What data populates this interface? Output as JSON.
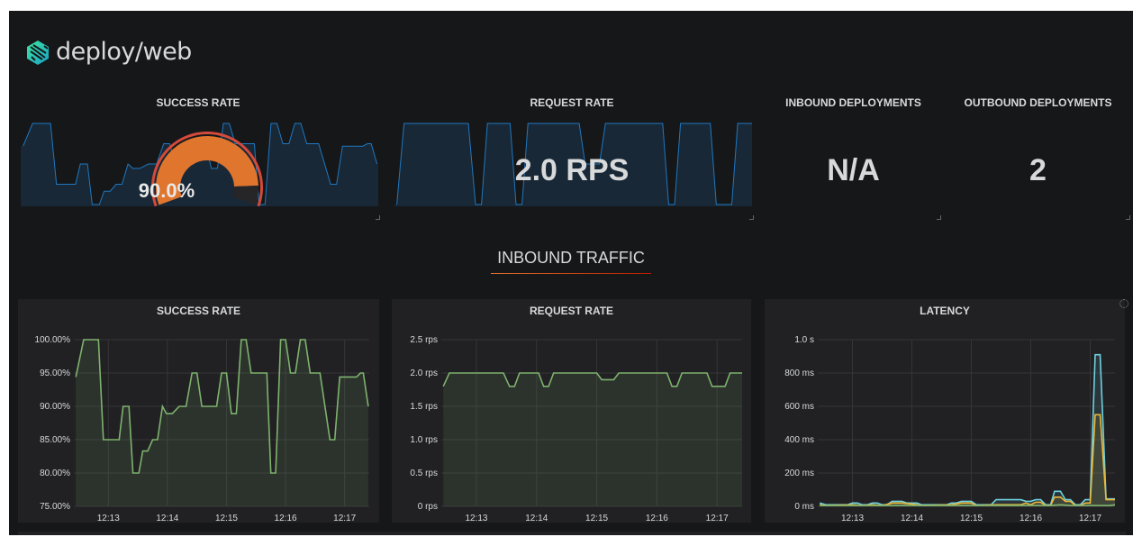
{
  "header": {
    "title": "deploy/web",
    "logo_icon": "linkerd-logo-icon"
  },
  "stats": {
    "success_rate": {
      "title": "SUCCESS RATE",
      "value": "90.0%",
      "gauge_fraction": 0.9,
      "colors": {
        "gauge": "#e0752d",
        "threshold": "#d44a3a",
        "sparkline": "#1f78c1"
      }
    },
    "request_rate": {
      "title": "REQUEST RATE",
      "value": "2.0 RPS"
    },
    "inbound_deployments": {
      "title": "INBOUND DEPLOYMENTS",
      "value": "N/A"
    },
    "outbound_deployments": {
      "title": "OUTBOUND DEPLOYMENTS",
      "value": "2"
    }
  },
  "row": {
    "title": "INBOUND TRAFFIC"
  },
  "chart_data": [
    {
      "type": "area",
      "title": "SUCCESS RATE",
      "x_ticks": [
        "12:13",
        "12:14",
        "12:15",
        "12:16",
        "12:17"
      ],
      "y_ticks": [
        "75.00%",
        "80.00%",
        "85.00%",
        "90.00%",
        "95.00%",
        "100.00%"
      ],
      "ylim": [
        75,
        100
      ],
      "xlim": [
        "12:12:25",
        "12:17:25"
      ],
      "grid": true,
      "series": [
        {
          "color": "#7eb26d",
          "points": [
            [
              "12:12:27",
              94.4
            ],
            [
              "12:12:35",
              100
            ],
            [
              "12:12:50",
              100
            ],
            [
              "12:12:55",
              85
            ],
            [
              "12:13:11",
              85
            ],
            [
              "12:13:15",
              90
            ],
            [
              "12:13:21",
              90
            ],
            [
              "12:13:25",
              80
            ],
            [
              "12:13:31",
              80
            ],
            [
              "12:13:35",
              83.3
            ],
            [
              "12:13:40",
              83.3
            ],
            [
              "12:13:45",
              85
            ],
            [
              "12:13:50",
              85
            ],
            [
              "12:13:55",
              90
            ],
            [
              "12:13:59",
              88.9
            ],
            [
              "12:14:05",
              88.9
            ],
            [
              "12:14:12",
              90
            ],
            [
              "12:14:19",
              90
            ],
            [
              "12:14:25",
              95
            ],
            [
              "12:14:30",
              95
            ],
            [
              "12:14:35",
              90
            ],
            [
              "12:14:50",
              90
            ],
            [
              "12:14:55",
              95
            ],
            [
              "12:15:00",
              95
            ],
            [
              "12:15:05",
              88.9
            ],
            [
              "12:15:10",
              88.9
            ],
            [
              "12:15:15",
              100
            ],
            [
              "12:15:20",
              100
            ],
            [
              "12:15:25",
              95
            ],
            [
              "12:15:41",
              95
            ],
            [
              "12:15:45",
              80
            ],
            [
              "12:15:50",
              80
            ],
            [
              "12:15:55",
              100
            ],
            [
              "12:16:00",
              100
            ],
            [
              "12:16:05",
              95
            ],
            [
              "12:16:10",
              95
            ],
            [
              "12:16:15",
              100
            ],
            [
              "12:16:20",
              100
            ],
            [
              "12:16:25",
              95
            ],
            [
              "12:16:35",
              95
            ],
            [
              "12:16:45",
              85
            ],
            [
              "12:16:50",
              85
            ],
            [
              "12:16:55",
              94.4
            ],
            [
              "12:17:12",
              94.4
            ],
            [
              "12:17:16",
              95
            ],
            [
              "12:17:19",
              95
            ],
            [
              "12:17:24",
              90
            ]
          ]
        }
      ]
    },
    {
      "type": "line",
      "title": "REQUEST RATE",
      "x_ticks": [
        "12:13",
        "12:14",
        "12:15",
        "12:16",
        "12:17"
      ],
      "y_ticks": [
        "0 rps",
        "0.5 rps",
        "1.0 rps",
        "1.5 rps",
        "2.0 rps",
        "2.5 rps"
      ],
      "ylim": [
        0,
        2.5
      ],
      "xlim": [
        "12:12:25",
        "12:17:25"
      ],
      "grid": true,
      "series": [
        {
          "color": "#7eb26d",
          "points": [
            [
              "12:12:27",
              1.8
            ],
            [
              "12:12:33",
              2.0
            ],
            [
              "12:13:27",
              2.0
            ],
            [
              "12:13:33",
              1.8
            ],
            [
              "12:13:38",
              1.8
            ],
            [
              "12:13:43",
              2.0
            ],
            [
              "12:14:02",
              2.0
            ],
            [
              "12:14:07",
              1.8
            ],
            [
              "12:14:12",
              1.8
            ],
            [
              "12:14:17",
              2.0
            ],
            [
              "12:15:00",
              2.0
            ],
            [
              "12:15:05",
              1.9
            ],
            [
              "12:15:17",
              1.9
            ],
            [
              "12:15:22",
              2.0
            ],
            [
              "12:16:10",
              2.0
            ],
            [
              "12:16:15",
              1.8
            ],
            [
              "12:16:20",
              1.8
            ],
            [
              "12:16:25",
              2.0
            ],
            [
              "12:16:50",
              2.0
            ],
            [
              "12:16:55",
              1.8
            ],
            [
              "12:17:08",
              1.8
            ],
            [
              "12:17:13",
              2.0
            ],
            [
              "12:17:25",
              2.0
            ]
          ]
        }
      ]
    },
    {
      "type": "line",
      "title": "LATENCY",
      "x_ticks": [
        "12:13",
        "12:14",
        "12:15",
        "12:16",
        "12:17"
      ],
      "y_ticks": [
        "0 ms",
        "200 ms",
        "400 ms",
        "600 ms",
        "800 ms",
        "1.0 s"
      ],
      "ylim": [
        0,
        1000
      ],
      "xlim": [
        "12:12:25",
        "12:17:25"
      ],
      "grid": true,
      "series": [
        {
          "color": "#6ed0e0",
          "points": [
            [
              "12:12:27",
              20
            ],
            [
              "12:12:33",
              10
            ],
            [
              "12:12:55",
              10
            ],
            [
              "12:13:00",
              20
            ],
            [
              "12:13:05",
              20
            ],
            [
              "12:13:10",
              10
            ],
            [
              "12:13:15",
              10
            ],
            [
              "12:13:20",
              20
            ],
            [
              "12:13:25",
              20
            ],
            [
              "12:13:30",
              10
            ],
            [
              "12:13:35",
              10
            ],
            [
              "12:13:40",
              30
            ],
            [
              "12:13:50",
              30
            ],
            [
              "12:13:55",
              20
            ],
            [
              "12:14:05",
              20
            ],
            [
              "12:14:10",
              10
            ],
            [
              "12:14:35",
              10
            ],
            [
              "12:14:40",
              20
            ],
            [
              "12:14:45",
              20
            ],
            [
              "12:14:50",
              30
            ],
            [
              "12:15:00",
              30
            ],
            [
              "12:15:05",
              10
            ],
            [
              "12:15:20",
              10
            ],
            [
              "12:15:25",
              40
            ],
            [
              "12:15:50",
              40
            ],
            [
              "12:15:55",
              30
            ],
            [
              "12:16:00",
              30
            ],
            [
              "12:16:05",
              40
            ],
            [
              "12:16:10",
              40
            ],
            [
              "12:16:15",
              10
            ],
            [
              "12:16:20",
              10
            ],
            [
              "12:16:24",
              90
            ],
            [
              "12:16:30",
              90
            ],
            [
              "12:16:35",
              40
            ],
            [
              "12:16:40",
              40
            ],
            [
              "12:16:45",
              10
            ],
            [
              "12:16:50",
              10
            ],
            [
              "12:16:55",
              40
            ],
            [
              "12:17:00",
              40
            ],
            [
              "12:17:05",
              910
            ],
            [
              "12:17:10",
              910
            ],
            [
              "12:17:16",
              45
            ],
            [
              "12:17:30",
              45
            ],
            [
              "12:17:36",
              90
            ]
          ]
        },
        {
          "color": "#eab839",
          "points": [
            [
              "12:12:27",
              10
            ],
            [
              "12:12:33",
              5
            ],
            [
              "12:13:00",
              10
            ],
            [
              "12:13:10",
              5
            ],
            [
              "12:13:20",
              10
            ],
            [
              "12:13:30",
              5
            ],
            [
              "12:13:40",
              20
            ],
            [
              "12:13:50",
              20
            ],
            [
              "12:14:05",
              10
            ],
            [
              "12:14:10",
              5
            ],
            [
              "12:14:40",
              10
            ],
            [
              "12:14:50",
              20
            ],
            [
              "12:15:00",
              20
            ],
            [
              "12:15:05",
              5
            ],
            [
              "12:15:25",
              10
            ],
            [
              "12:15:50",
              10
            ],
            [
              "12:15:55",
              20
            ],
            [
              "12:16:00",
              10
            ],
            [
              "12:16:05",
              25
            ],
            [
              "12:16:10",
              25
            ],
            [
              "12:16:15",
              5
            ],
            [
              "12:16:20",
              5
            ],
            [
              "12:16:24",
              55
            ],
            [
              "12:16:30",
              55
            ],
            [
              "12:16:35",
              30
            ],
            [
              "12:16:40",
              30
            ],
            [
              "12:16:45",
              5
            ],
            [
              "12:16:50",
              5
            ],
            [
              "12:16:55",
              20
            ],
            [
              "12:17:00",
              20
            ],
            [
              "12:17:05",
              550
            ],
            [
              "12:17:10",
              550
            ],
            [
              "12:17:16",
              40
            ],
            [
              "12:17:36",
              40
            ]
          ]
        },
        {
          "color": "#7eb26d",
          "points": [
            [
              "12:12:27",
              5
            ],
            [
              "12:15:00",
              5
            ],
            [
              "12:16:20",
              5
            ],
            [
              "12:16:30",
              10
            ],
            [
              "12:16:40",
              5
            ],
            [
              "12:17:20",
              5
            ],
            [
              "12:17:25",
              10
            ],
            [
              "12:17:36",
              10
            ]
          ]
        }
      ]
    }
  ]
}
